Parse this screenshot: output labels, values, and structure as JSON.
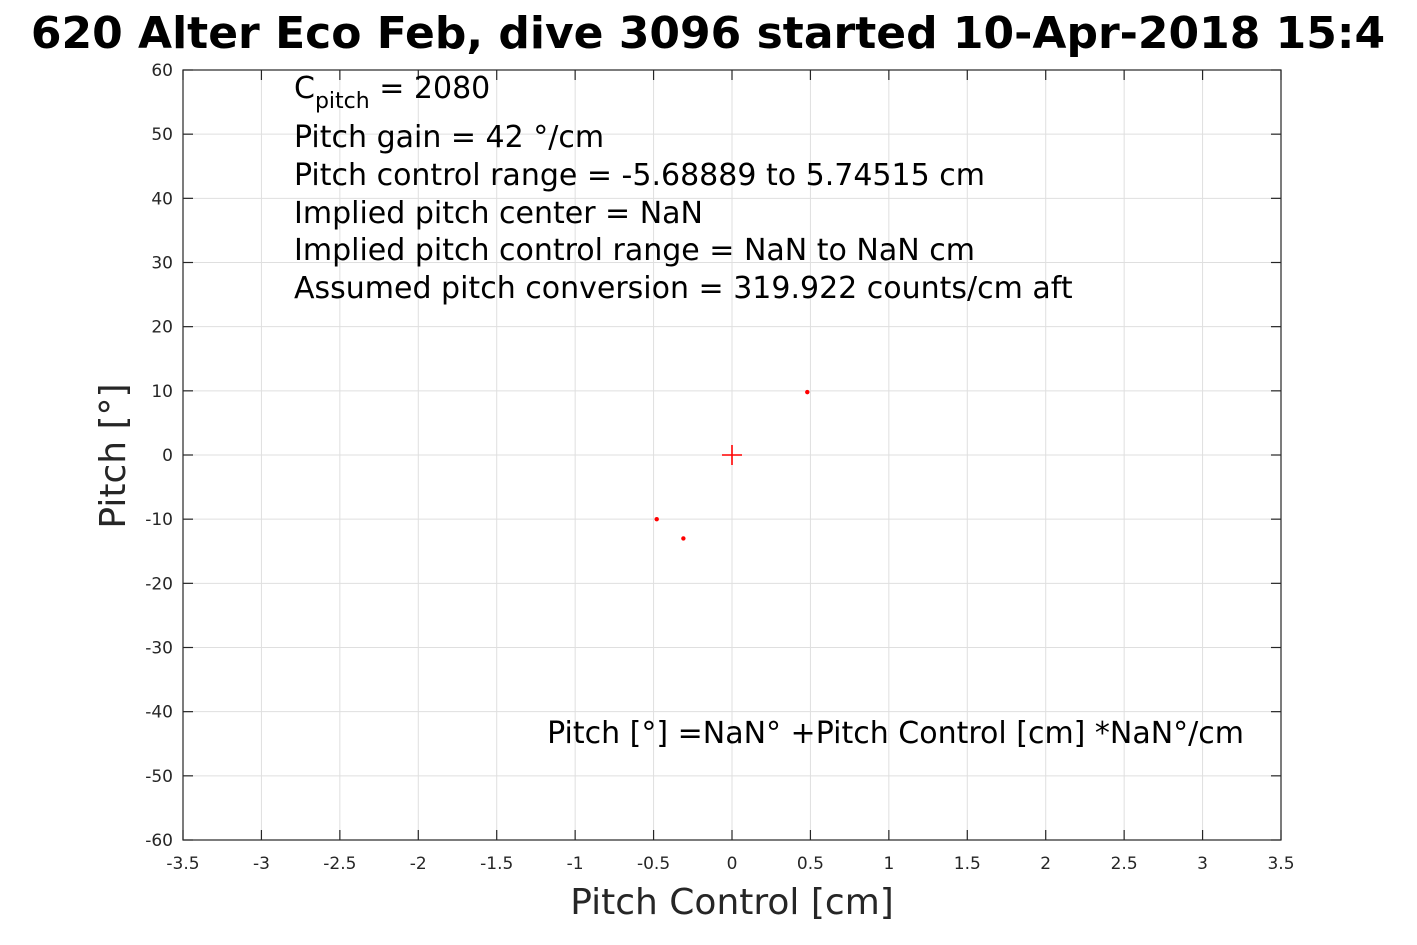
{
  "chart_data": {
    "type": "scatter",
    "title": "620 Alter Eco Feb, dive 3096 started 10-Apr-2018 15:4",
    "xlabel": "Pitch Control [cm]",
    "ylabel": "Pitch [°]",
    "xlim": [
      -3.5,
      3.5
    ],
    "ylim": [
      -60,
      60
    ],
    "x_ticks": [
      -3.5,
      -3,
      -2.5,
      -2,
      -1.5,
      -1,
      -0.5,
      0,
      0.5,
      1,
      1.5,
      2,
      2.5,
      3,
      3.5
    ],
    "y_ticks": [
      60,
      50,
      40,
      30,
      20,
      10,
      0,
      -10,
      -20,
      -30,
      -40,
      -50,
      -60
    ],
    "grid": true,
    "color": "#ff0000",
    "points": [
      {
        "x": 0.48,
        "y": 9.8
      },
      {
        "x": -0.48,
        "y": -10
      },
      {
        "x": -0.31,
        "y": -13
      }
    ],
    "center_marker": {
      "x": 0,
      "y": 0,
      "shape": "plus"
    },
    "annotations": {
      "c_pitch_symbol": "C",
      "c_pitch_subscript": "pitch",
      "c_pitch_value": " = 2080",
      "lines": [
        "Pitch gain = 42 °/cm",
        "Pitch control range = -5.68889 to 5.74515 cm",
        "Implied pitch center = NaN",
        "Implied pitch control range = NaN to NaN cm",
        "Assumed pitch conversion = 319.922 counts/cm aft"
      ],
      "equation": "Pitch [°] =NaN° +Pitch Control [cm] *NaN°/cm"
    }
  }
}
